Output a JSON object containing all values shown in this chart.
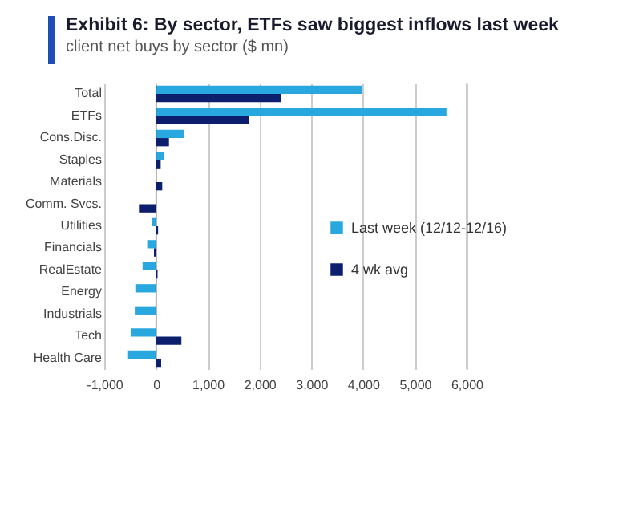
{
  "chart_data": {
    "type": "bar",
    "orientation": "horizontal",
    "title": "Exhibit 6: By sector, ETFs saw biggest inflows last week",
    "subtitle": "client net buys by sector ($ mn)",
    "categories": [
      "Total",
      "ETFs",
      "Cons.Disc.",
      "Staples",
      "Materials",
      "Comm. Svcs.",
      "Utilities",
      "Financials",
      "RealEstate",
      "Energy",
      "Industrials",
      "Tech",
      "Health Care"
    ],
    "series": [
      {
        "name": "Last week (12/12-12/16)",
        "color": "#29a8e0",
        "values": [
          3980,
          5610,
          540,
          160,
          null,
          null,
          -80,
          -170,
          -260,
          -400,
          -410,
          -490,
          -540
        ]
      },
      {
        "name": "4 wk avg",
        "color": "#0c1f6e",
        "values": [
          2410,
          1790,
          250,
          90,
          120,
          -330,
          40,
          -40,
          30,
          null,
          null,
          490,
          100
        ]
      }
    ],
    "xlim": [
      -1000,
      6000
    ],
    "xticks": [
      {
        "value": -1000,
        "label": "-1,000"
      },
      0,
      {
        "value": 1000,
        "label": "1,000"
      },
      {
        "value": 2000,
        "label": "2,000"
      },
      {
        "value": 3000,
        "label": "3,000"
      },
      {
        "value": 4000,
        "label": "4,000"
      },
      {
        "value": 5000,
        "label": "5,000"
      },
      {
        "value": 6000,
        "label": "6,000"
      }
    ],
    "grid": "x",
    "legend": "right"
  }
}
